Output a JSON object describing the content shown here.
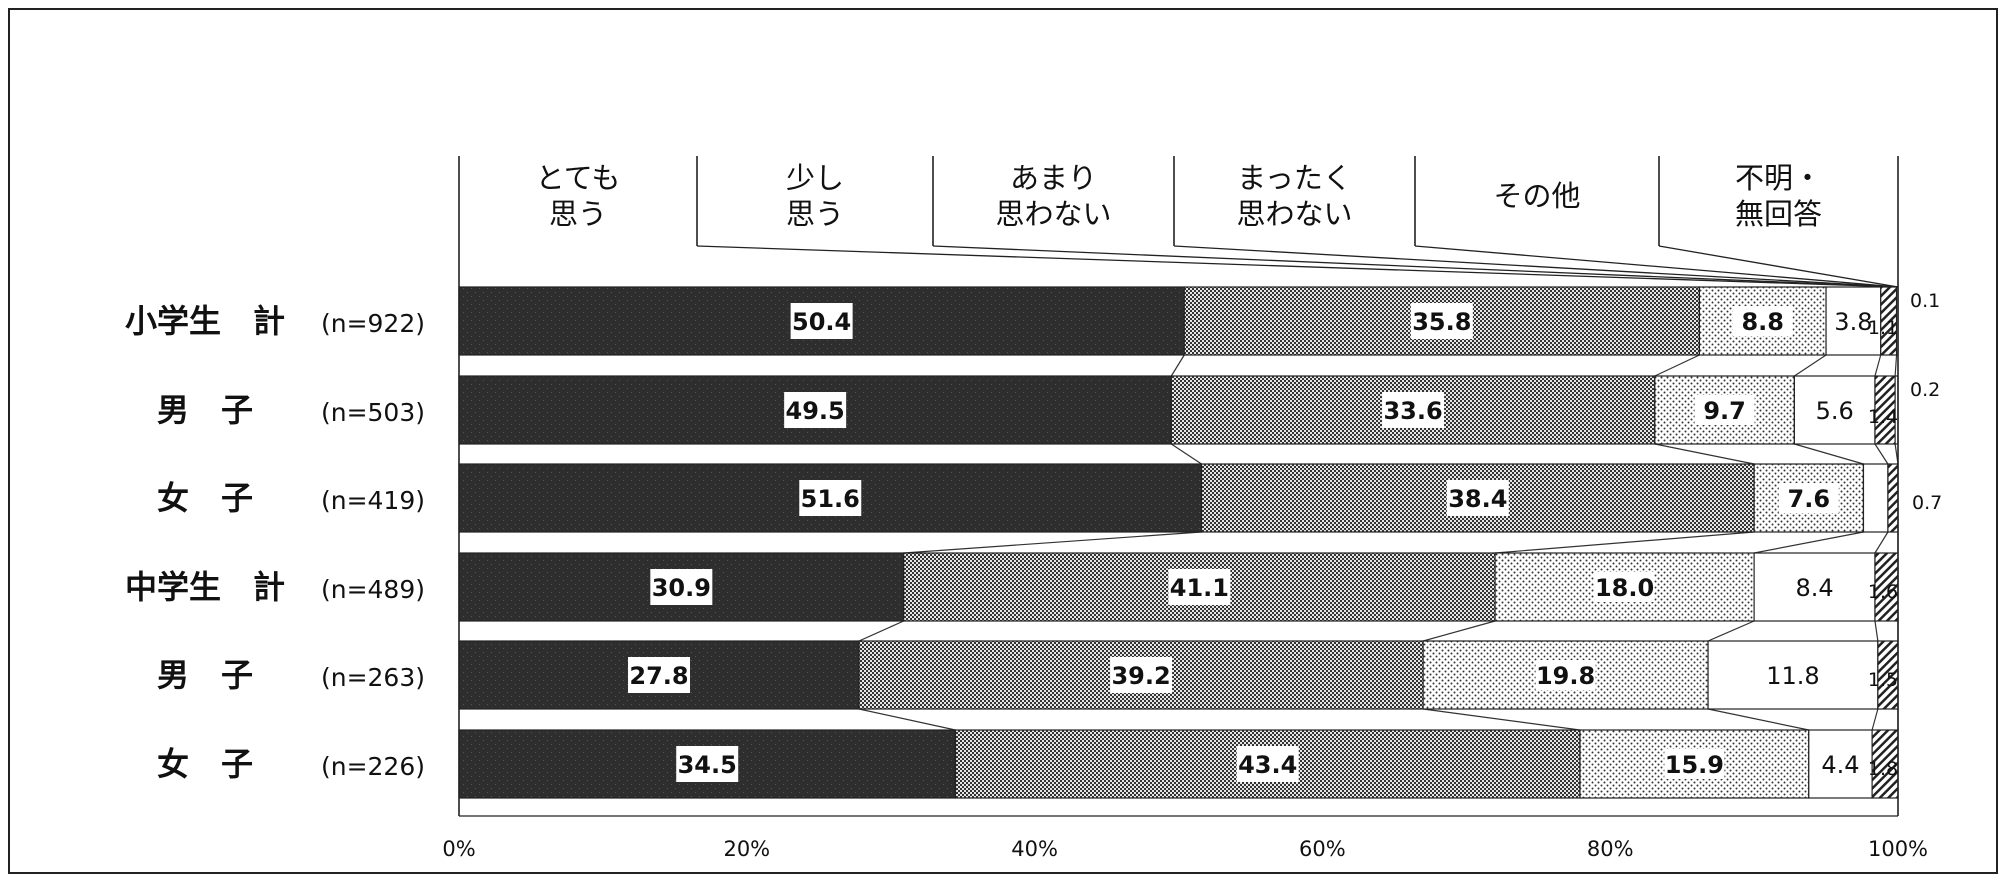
{
  "chart_data": {
    "type": "bar",
    "orientation": "horizontal",
    "stacked": true,
    "legend": {
      "placement": "top",
      "items": [
        {
          "lines": [
            "とても",
            "思う"
          ]
        },
        {
          "lines": [
            "少し",
            "思う"
          ]
        },
        {
          "lines": [
            "あまり",
            "思わない"
          ]
        },
        {
          "lines": [
            "まったく",
            "思わない"
          ]
        },
        {
          "lines": [
            "その他"
          ]
        },
        {
          "lines": [
            "不明・",
            "無回答"
          ]
        }
      ]
    },
    "categories": [
      {
        "label": "小学生　計",
        "n": "(n=922)"
      },
      {
        "label": "男　子",
        "n": "(n=503)"
      },
      {
        "label": "女　子",
        "n": "(n=419)"
      },
      {
        "label": "中学生　計",
        "n": "(n=489)"
      },
      {
        "label": "男　子",
        "n": "(n=263)"
      },
      {
        "label": "女　子",
        "n": "(n=226)"
      }
    ],
    "series": [
      {
        "name": "とても思う",
        "values": [
          50.4,
          49.5,
          51.6,
          30.9,
          27.8,
          34.5
        ],
        "fill": "solid-dark"
      },
      {
        "name": "少し思う",
        "values": [
          35.8,
          33.6,
          38.4,
          41.1,
          39.2,
          43.4
        ],
        "fill": "checker"
      },
      {
        "name": "あまり思わない",
        "values": [
          8.8,
          9.7,
          7.6,
          18.0,
          19.8,
          15.9
        ],
        "fill": "dots"
      },
      {
        "name": "まったく思わない",
        "values": [
          3.8,
          5.6,
          1.7,
          8.4,
          11.8,
          4.4
        ],
        "fill": "white"
      },
      {
        "name": "その他",
        "values": [
          1.1,
          1.4,
          0.7,
          1.6,
          1.5,
          1.8
        ],
        "fill": "hatch"
      },
      {
        "name": "不明・無回答",
        "values": [
          0.1,
          0.2,
          0.0,
          0.0,
          0.0,
          0.0
        ],
        "fill": "white"
      }
    ],
    "outside_labels": [
      {
        "row": 0,
        "lines": [
          "0.1",
          "1.1"
        ]
      },
      {
        "row": 1,
        "lines": [
          "0.2",
          "1.4"
        ]
      },
      {
        "row": 2,
        "lines": [
          "0.7"
        ]
      },
      {
        "row": 3,
        "lines": [
          "1.6"
        ]
      },
      {
        "row": 4,
        "lines": [
          "1.5"
        ]
      },
      {
        "row": 5,
        "lines": [
          "1.8"
        ]
      }
    ],
    "xaxis": {
      "ticks": [
        "0%",
        "20%",
        "40%",
        "60%",
        "80%",
        "100%"
      ],
      "range": [
        0,
        100
      ]
    },
    "colors": {
      "dark": "#2b2b2b",
      "mid": "#8a8a8a",
      "light": "#ffffff",
      "frame": "#222222"
    }
  }
}
